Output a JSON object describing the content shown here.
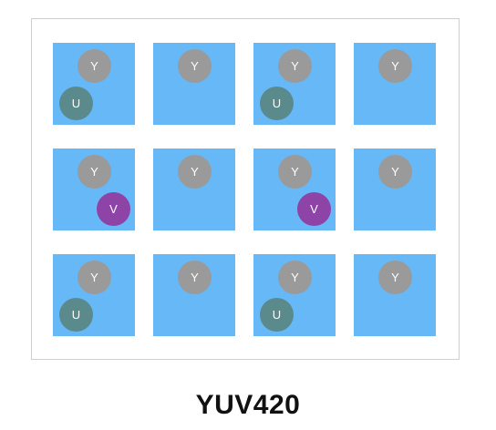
{
  "labels": {
    "y": "Y",
    "u": "U",
    "v": "V"
  },
  "caption": "YUV420",
  "colors": {
    "cell": "#66b8f7",
    "y": "#9a9a9a",
    "u": "#5a8a8c",
    "v": "#8e44a6",
    "frame_border": "#cfcfcf"
  },
  "grid": {
    "rows": 3,
    "cols": 4,
    "pixels": [
      [
        {
          "y": true,
          "u": true,
          "v": false
        },
        {
          "y": true,
          "u": false,
          "v": false
        },
        {
          "y": true,
          "u": true,
          "v": false
        },
        {
          "y": true,
          "u": false,
          "v": false
        }
      ],
      [
        {
          "y": true,
          "u": false,
          "v": true
        },
        {
          "y": true,
          "u": false,
          "v": false
        },
        {
          "y": true,
          "u": false,
          "v": true
        },
        {
          "y": true,
          "u": false,
          "v": false
        }
      ],
      [
        {
          "y": true,
          "u": true,
          "v": false
        },
        {
          "y": true,
          "u": false,
          "v": false
        },
        {
          "y": true,
          "u": true,
          "v": false
        },
        {
          "y": true,
          "u": false,
          "v": false
        }
      ]
    ]
  }
}
